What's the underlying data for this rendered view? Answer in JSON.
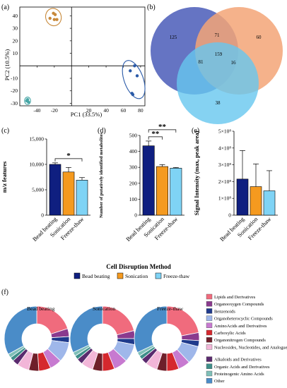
{
  "colors": {
    "bead": "#0f1f80",
    "sonic": "#f59a1f",
    "freeze": "#7fd3f5",
    "pca_bead": "#2a5aa8",
    "pca_sonic": "#c8893a",
    "pca_freeze": "#47a6a6"
  },
  "panels": {
    "a": "(a)",
    "b": "(b)",
    "c": "(c)",
    "d": "(d)",
    "e": "(e)",
    "f": "(f)"
  },
  "common": {
    "categories": [
      "Bead beating",
      "Sonication",
      "Freeze-thaw"
    ],
    "xlabel": "Cell Disruption Method",
    "legend": [
      {
        "name": "Bead beating",
        "color": "#0f1f80"
      },
      {
        "name": "Sonication",
        "color": "#f59a1f"
      },
      {
        "name": "Freeze-thaw",
        "color": "#7fd3f5"
      }
    ]
  },
  "chart_data": [
    {
      "id": "a",
      "type": "scatter",
      "xlabel": "PC1 (33.5%)",
      "ylabel": "PC2 (10.5%)",
      "xlim": [
        -60,
        85
      ],
      "ylim": [
        -32,
        47
      ],
      "xticks": [
        -40,
        -20,
        20,
        40,
        60,
        80
      ],
      "yticks": [
        -30,
        -20,
        -10,
        10,
        20,
        30,
        40
      ],
      "xtick_labels": [
        "-40",
        "-20",
        "20",
        "40",
        "60",
        "80"
      ],
      "ytick_labels": [
        "-30",
        "-20",
        "-10",
        "10",
        "20",
        "30",
        "40"
      ],
      "series": [
        {
          "group": "bead",
          "points": [
            [
              68,
              -4
            ],
            [
              73,
              0
            ],
            [
              76,
              -8
            ],
            [
              70,
              -22
            ],
            [
              71,
              -23
            ]
          ],
          "ellipse": {
            "cx": 72,
            "cy": -11,
            "rx": 11,
            "ry": 16,
            "rot": -20
          }
        },
        {
          "group": "sonic",
          "points": [
            [
              -25,
              38
            ],
            [
              -20,
              37
            ],
            [
              -17,
              37
            ],
            [
              -21,
              42
            ],
            [
              -19,
              41
            ]
          ],
          "ellipse": {
            "cx": -21,
            "cy": 39,
            "rx": 9,
            "ry": 7,
            "rot": -15
          }
        },
        {
          "group": "freeze",
          "points": [
            [
              -52,
              -28
            ],
            [
              -50,
              -29
            ],
            [
              -51,
              -27
            ]
          ],
          "ellipse": {
            "cx": -51,
            "cy": -28,
            "rx": 3.5,
            "ry": 3,
            "rot": 0
          }
        }
      ]
    },
    {
      "id": "b",
      "type": "venn",
      "regions": [
        {
          "label": "125",
          "value": 125
        },
        {
          "label": "71",
          "value": 71
        },
        {
          "label": "60",
          "value": 60
        },
        {
          "label": "159",
          "value": 159
        },
        {
          "label": "81",
          "value": 81
        },
        {
          "label": "16",
          "value": 16
        },
        {
          "label": "38",
          "value": 38
        }
      ]
    },
    {
      "id": "c",
      "type": "bar",
      "ylabel": "m/z features",
      "ylim": [
        0,
        15000
      ],
      "yticks": [
        0,
        5000,
        10000,
        15000
      ],
      "ytick_labels": [
        "0",
        "5,000",
        "10,000",
        "15,000"
      ],
      "values": [
        10000,
        8500,
        6900
      ],
      "errors": [
        300,
        900,
        500
      ],
      "sig": [
        {
          "from": 0,
          "to": 2,
          "label": "*"
        }
      ]
    },
    {
      "id": "d",
      "type": "bar",
      "ylabel": "Number of putatively identified metabolites",
      "ylim": [
        0,
        500
      ],
      "yticks": [
        0,
        100,
        200,
        300,
        400,
        500
      ],
      "ytick_labels": [
        "0",
        "100",
        "200",
        "300",
        "400",
        "500"
      ],
      "values": [
        435,
        305,
        295
      ],
      "errors": [
        30,
        12,
        4
      ],
      "sig": [
        {
          "from": 0,
          "to": 1,
          "label": "**"
        },
        {
          "from": 0,
          "to": 2,
          "label": "**"
        }
      ]
    },
    {
      "id": "e",
      "type": "bar",
      "ylabel": "Signal Intensity (max, peak area)",
      "ylim": [
        0,
        500000000
      ],
      "yticks": [
        0,
        100000000,
        200000000,
        300000000,
        400000000,
        500000000
      ],
      "ytick_labels": [
        "0",
        "1×10⁸",
        "2×10⁸",
        "3×10⁸",
        "4×10⁸",
        "5×10⁸"
      ],
      "values": [
        215000000,
        170000000,
        145000000
      ],
      "errors": [
        170000000,
        135000000,
        120000000
      ]
    },
    {
      "id": "f",
      "type": "pie",
      "class_order": [
        {
          "name": "Lipids and Derivatives",
          "color": "#f06b7d"
        },
        {
          "name": "Organooxygen Compounds",
          "color": "#8a3a8e"
        },
        {
          "name": "Benzenoids",
          "color": "#1f3a8c"
        },
        {
          "name": "Organoheterocyclic Compounds",
          "color": "#9fb7ea"
        },
        {
          "name": "AminoAcids and Derivatives",
          "color": "#c77ad0"
        },
        {
          "name": "Carboxylic Acids",
          "color": "#d5282e"
        },
        {
          "name": "Organonitrogen Compounds",
          "color": "#6e1f2a"
        },
        {
          "name": "Nucleosides, Nucleotides, and Analogues",
          "color": "#f2b6d8"
        },
        {
          "name": "Alkaloids and Derivatives",
          "color": "#5a2a6e"
        },
        {
          "name": "Organic Acids and Derivatives",
          "color": "#3f8f8a"
        },
        {
          "name": "Proteinogenic Amino Acids",
          "color": "#7fbfb8"
        },
        {
          "name": "Other",
          "color": "#4a8cc8"
        }
      ],
      "donuts": [
        {
          "title": "Bead beating",
          "values": [
            20,
            4,
            3,
            10,
            6,
            6,
            5,
            6,
            3,
            2,
            2,
            33
          ]
        },
        {
          "title": "Sonication",
          "values": [
            21,
            4,
            3,
            9,
            7,
            6,
            5,
            6,
            3,
            2,
            2,
            32
          ]
        },
        {
          "title": "Freeze-thaw",
          "values": [
            22,
            4,
            3,
            9,
            6,
            6,
            5,
            6,
            3,
            2,
            2,
            32
          ]
        }
      ]
    }
  ]
}
